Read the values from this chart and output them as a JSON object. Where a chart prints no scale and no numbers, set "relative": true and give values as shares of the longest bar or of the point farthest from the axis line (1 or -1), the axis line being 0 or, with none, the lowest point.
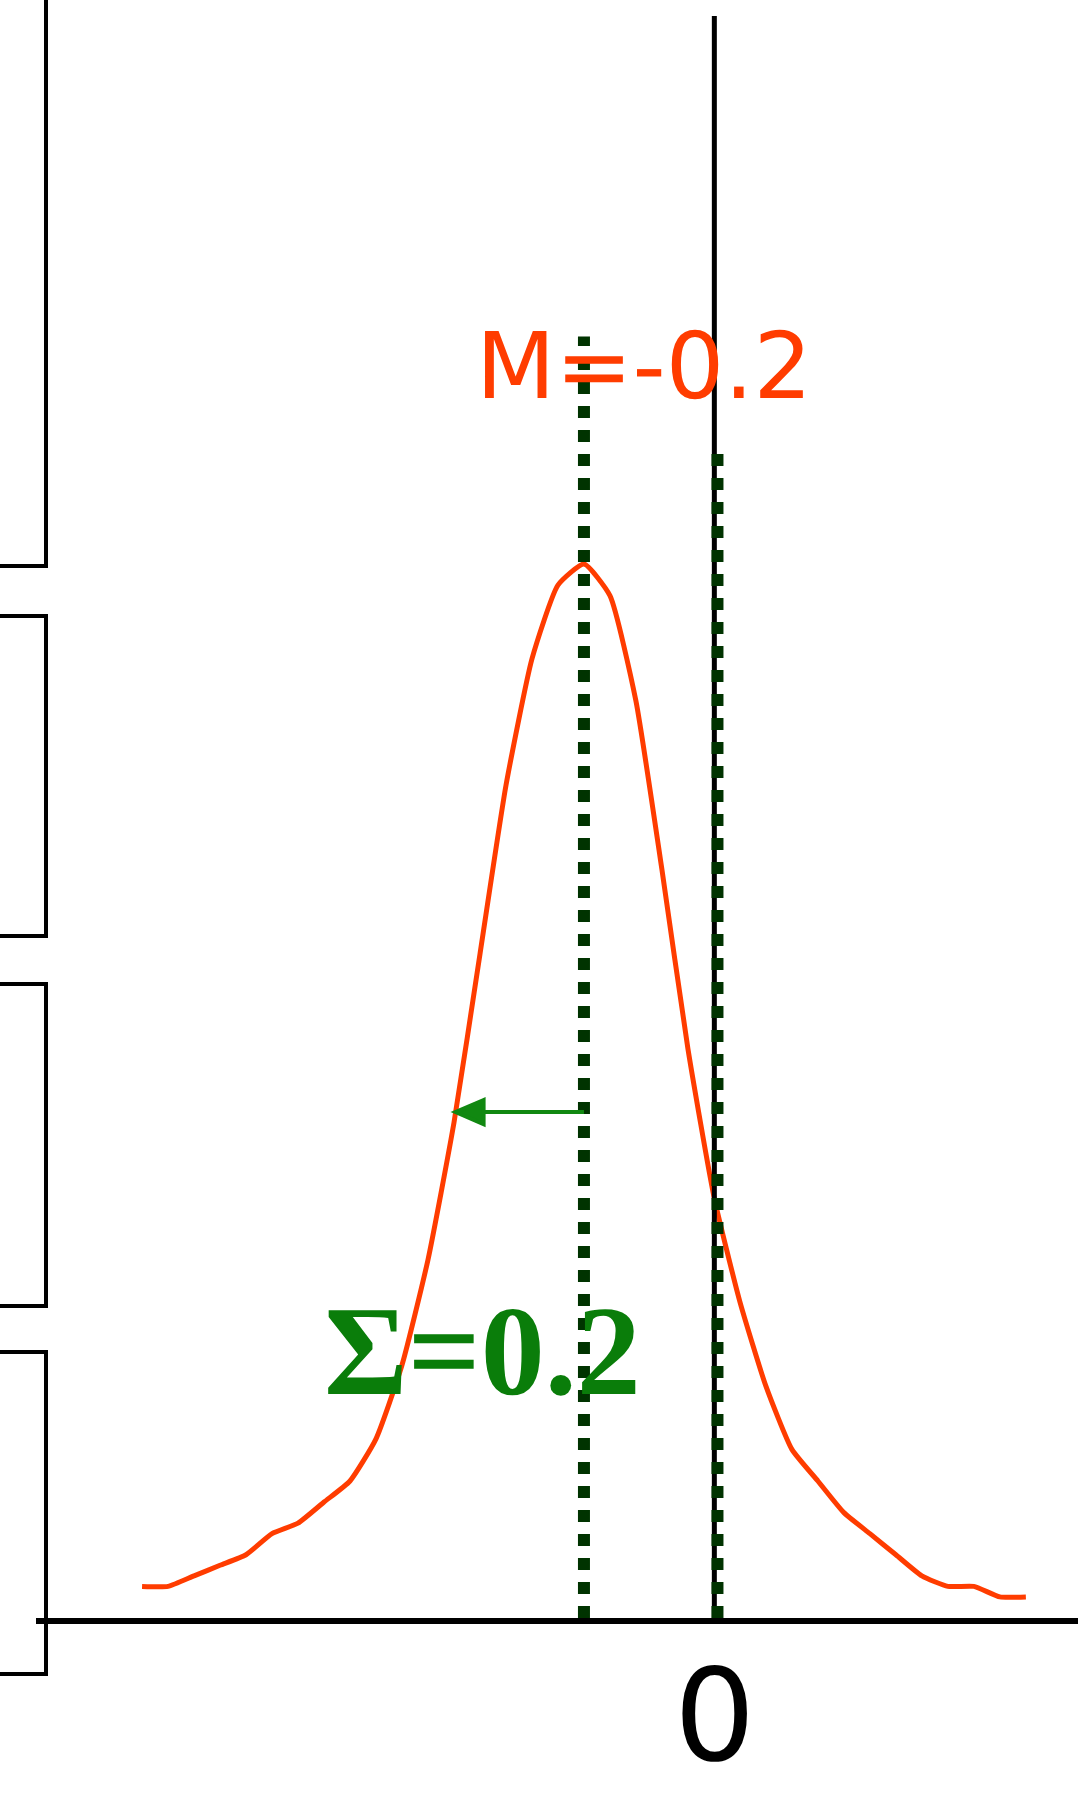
{
  "chart_data": {
    "type": "line",
    "relative": true,
    "categories": [
      null,
      null,
      null,
      null,
      null,
      null,
      null,
      null,
      null,
      null,
      null,
      null,
      null,
      null,
      null,
      null,
      null,
      null,
      null,
      null,
      null,
      null,
      null,
      null,
      null,
      null,
      null,
      null,
      null,
      null,
      null,
      null,
      null,
      null,
      null
    ],
    "series": [
      {
        "color": "#ff3c00",
        "values": [
          0.03,
          0.03,
          0.04,
          0.05,
          0.06,
          0.08,
          0.09,
          0.11,
          0.13,
          0.17,
          0.24,
          0.34,
          0.47,
          0.63,
          0.79,
          0.91,
          0.98,
          1,
          0.97,
          0.87,
          0.71,
          0.54,
          0.4,
          0.3,
          0.22,
          0.16,
          0.13,
          0.1,
          0.08,
          0.06,
          0.04,
          0.03,
          0.03,
          0.02,
          0.02
        ]
      }
    ],
    "line_style": "solid",
    "annotations": [
      "M=-0.2",
      "Σ=0.2",
      "0"
    ]
  }
}
